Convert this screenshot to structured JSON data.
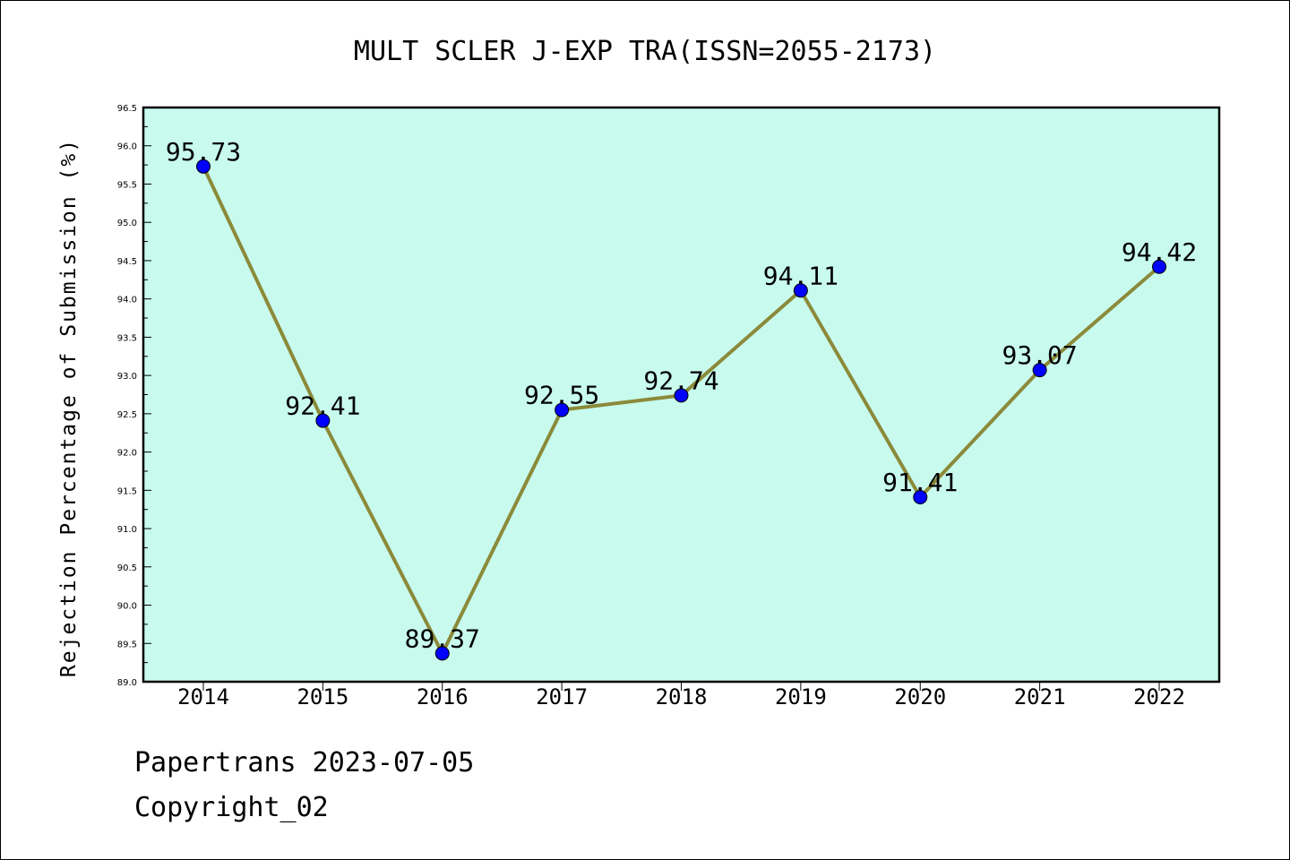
{
  "chart_data": {
    "type": "line",
    "title": "MULT SCLER J-EXP TRA(ISSN=2055-2173)",
    "ylabel": "Rejection Percentage of Submission (%)",
    "xlabel": "",
    "categories": [
      "2014",
      "2015",
      "2016",
      "2017",
      "2018",
      "2019",
      "2020",
      "2021",
      "2022"
    ],
    "values": [
      95.73,
      92.41,
      89.37,
      92.55,
      92.74,
      94.11,
      91.41,
      93.07,
      94.42
    ],
    "data_labels": [
      "95.73",
      "92.41",
      "89.37",
      "92.55",
      "92.74",
      "94.11",
      "91.41",
      "93.07",
      "94.42"
    ],
    "ylim": [
      89.0,
      96.5
    ],
    "yticks": [
      "89.0",
      "89.5",
      "90.0",
      "90.5",
      "91.0",
      "91.5",
      "92.0",
      "92.5",
      "93.0",
      "93.5",
      "94.0",
      "94.5",
      "95.0",
      "95.5",
      "96.0",
      "96.5"
    ],
    "grid": false,
    "colors": {
      "plot_background": "#c8fbee",
      "line": "#8b8a3a",
      "marker": "#0000ff"
    }
  },
  "footer": {
    "line1": "Papertrans 2023-07-05",
    "line2": "Copyright_02"
  }
}
